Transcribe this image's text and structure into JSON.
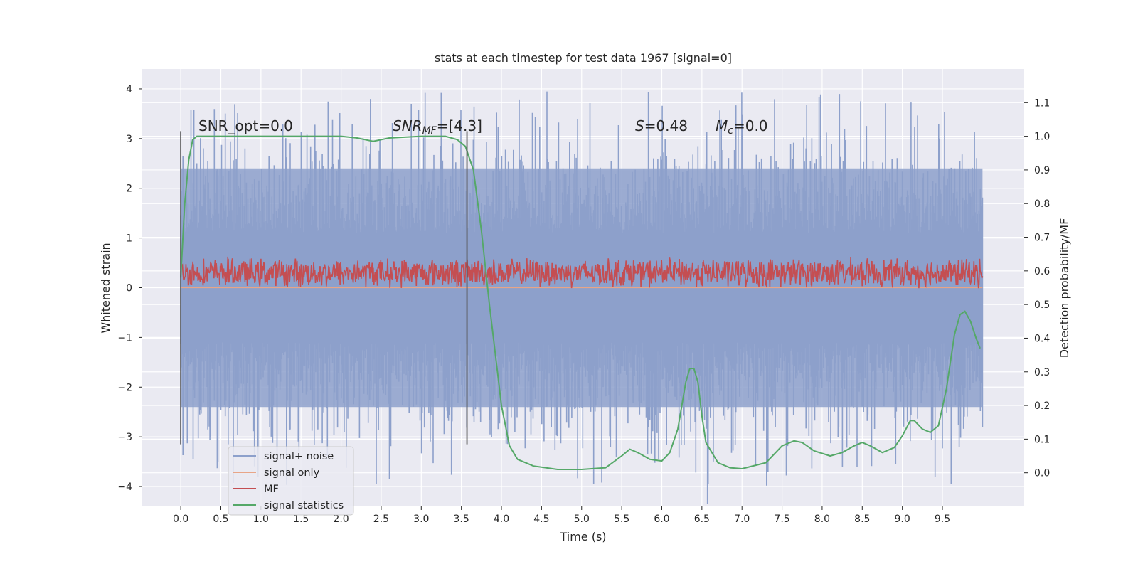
{
  "chart_data": {
    "type": "line",
    "title": "stats at each timestep for test data 1967 [signal=0]",
    "xlabel": "Time (s)",
    "ylabel": "Whitened strain",
    "y2label": "Detection probability/MF",
    "xlim": [
      -0.48,
      10.52
    ],
    "ylim": [
      -4.4,
      4.4
    ],
    "y2lim": [
      -0.1,
      1.2
    ],
    "grid": true,
    "legend_position": "lower-left",
    "x_ticks": [
      "0.0",
      "0.5",
      "1.0",
      "1.5",
      "2.0",
      "2.5",
      "3.0",
      "3.5",
      "4.0",
      "4.5",
      "5.0",
      "5.5",
      "6.0",
      "6.5",
      "7.0",
      "7.5",
      "8.0",
      "8.5",
      "9.0",
      "9.5"
    ],
    "y_ticks": [
      "−4",
      "−3",
      "−2",
      "−1",
      "0",
      "1",
      "2",
      "3",
      "4"
    ],
    "y2_ticks": [
      "0.0",
      "0.1",
      "0.2",
      "0.3",
      "0.4",
      "0.5",
      "0.6",
      "0.7",
      "0.8",
      "0.9",
      "1.0",
      "1.1"
    ],
    "annotations": {
      "snr_opt": "SNR_opt=0.0",
      "snr_mf_pre": "SNR",
      "snr_mf_sub": "MF",
      "snr_mf_post": "=[4.3]",
      "s_pre": "S",
      "s_post": "=0.48",
      "mc_pre": "M",
      "mc_sub": "c",
      "mc_post": "=0.0"
    },
    "vlines": [
      0.0,
      3.57
    ],
    "series": [
      {
        "name": "signal+ noise",
        "color": "#8da0cb",
        "axis": "left",
        "x_range": [
          0.0,
          10.0
        ],
        "envelope_top": 2.4,
        "envelope_bottom": -2.4,
        "peak_max": 4.0,
        "peak_min": -4.0
      },
      {
        "name": "signal only",
        "color": "#e8a587",
        "axis": "left",
        "x": [
          0.0,
          10.0
        ],
        "y": [
          0.0,
          0.0
        ]
      },
      {
        "name": "MF",
        "color": "#c44e52",
        "axis": "left",
        "x_range": [
          0.0,
          10.0
        ],
        "center": 0.3,
        "amplitude": 0.25
      },
      {
        "name": "signal statistics",
        "color": "#55a868",
        "axis": "right",
        "x": [
          0.0,
          0.05,
          0.1,
          0.15,
          0.2,
          0.3,
          0.5,
          1.0,
          1.5,
          2.0,
          2.2,
          2.4,
          2.6,
          3.0,
          3.3,
          3.45,
          3.55,
          3.65,
          3.75,
          3.85,
          3.95,
          4.0,
          4.1,
          4.2,
          4.4,
          4.7,
          5.0,
          5.3,
          5.5,
          5.6,
          5.7,
          5.85,
          6.0,
          6.1,
          6.2,
          6.3,
          6.35,
          6.4,
          6.45,
          6.5,
          6.55,
          6.7,
          6.85,
          7.0,
          7.3,
          7.5,
          7.65,
          7.75,
          7.9,
          8.1,
          8.25,
          8.4,
          8.5,
          8.6,
          8.75,
          8.9,
          9.0,
          9.1,
          9.15,
          9.25,
          9.35,
          9.45,
          9.55,
          9.65,
          9.72,
          9.78,
          9.85,
          9.92,
          9.97
        ],
        "y": [
          0.58,
          0.8,
          0.93,
          0.99,
          1.0,
          1.0,
          1.0,
          1.0,
          1.0,
          1.0,
          0.995,
          0.985,
          0.995,
          1.0,
          1.0,
          0.99,
          0.97,
          0.9,
          0.72,
          0.5,
          0.3,
          0.2,
          0.08,
          0.04,
          0.02,
          0.01,
          0.01,
          0.015,
          0.05,
          0.07,
          0.06,
          0.04,
          0.035,
          0.06,
          0.13,
          0.27,
          0.31,
          0.31,
          0.27,
          0.17,
          0.09,
          0.03,
          0.015,
          0.012,
          0.03,
          0.08,
          0.095,
          0.09,
          0.065,
          0.05,
          0.06,
          0.08,
          0.09,
          0.08,
          0.06,
          0.075,
          0.11,
          0.155,
          0.155,
          0.13,
          0.12,
          0.14,
          0.25,
          0.41,
          0.47,
          0.48,
          0.45,
          0.4,
          0.37
        ]
      }
    ]
  }
}
